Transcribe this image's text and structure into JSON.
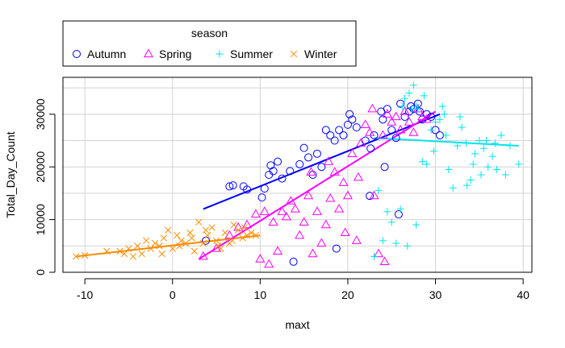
{
  "chart_data": {
    "type": "scatter",
    "xlabel": "maxt",
    "ylabel": "Total_Day_Count",
    "xlim": [
      -12.5,
      41
    ],
    "ylim": [
      0,
      37000
    ],
    "x_ticks": [
      -10,
      0,
      10,
      20,
      30,
      40
    ],
    "y_ticks": [
      0,
      10000,
      20000,
      30000
    ],
    "grid": true,
    "legend": {
      "title": "season",
      "placement": "top-left, outside plot"
    },
    "series": [
      {
        "name": "Autumn",
        "color": "#0000ff",
        "marker": "circle",
        "points": [
          [
            3.8,
            6000
          ],
          [
            6.5,
            16300
          ],
          [
            6.9,
            16500
          ],
          [
            8.1,
            16300
          ],
          [
            8.5,
            15700
          ],
          [
            10.2,
            14200
          ],
          [
            10.5,
            15900
          ],
          [
            11,
            18500
          ],
          [
            11.2,
            20300
          ],
          [
            11.5,
            19200
          ],
          [
            12,
            21000
          ],
          [
            12.5,
            17800
          ],
          [
            13.4,
            19200
          ],
          [
            13.8,
            2000
          ],
          [
            14.5,
            20500
          ],
          [
            15,
            23600
          ],
          [
            15.5,
            21800
          ],
          [
            16,
            18500
          ],
          [
            16.5,
            22500
          ],
          [
            17,
            20000
          ],
          [
            17.5,
            27000
          ],
          [
            18,
            26000
          ],
          [
            18.5,
            25000
          ],
          [
            19,
            27000
          ],
          [
            19.5,
            26000
          ],
          [
            20,
            28000
          ],
          [
            20.5,
            29000
          ],
          [
            21,
            27500
          ],
          [
            22,
            25000
          ],
          [
            22.5,
            14500
          ],
          [
            22.6,
            23500
          ],
          [
            23,
            26000
          ],
          [
            24,
            29000
          ],
          [
            24.5,
            31000
          ],
          [
            25,
            27000
          ],
          [
            25.5,
            25500
          ],
          [
            25.8,
            11000
          ],
          [
            26,
            32000
          ],
          [
            26.5,
            29500
          ],
          [
            27,
            30500
          ],
          [
            27.5,
            31000
          ],
          [
            28,
            32000
          ],
          [
            28.5,
            29000
          ],
          [
            29,
            30000
          ],
          [
            29.5,
            29500
          ],
          [
            30,
            27000
          ],
          [
            30.5,
            26000
          ],
          [
            18.7,
            4500
          ],
          [
            20.2,
            30000
          ],
          [
            23.8,
            30500
          ],
          [
            27.2,
            31500
          ],
          [
            28.2,
            30500
          ],
          [
            24.2,
            20000
          ]
        ]
      },
      {
        "name": "Spring",
        "color": "#ff00ff",
        "marker": "triangle",
        "points": [
          [
            3.5,
            3000
          ],
          [
            5,
            4500
          ],
          [
            6.5,
            7000
          ],
          [
            7.5,
            8500
          ],
          [
            8.5,
            9000
          ],
          [
            9.5,
            11000
          ],
          [
            10,
            2500
          ],
          [
            10.5,
            11500
          ],
          [
            11,
            1500
          ],
          [
            11.5,
            9500
          ],
          [
            12,
            4000
          ],
          [
            12.5,
            11500
          ],
          [
            13,
            10500
          ],
          [
            13.5,
            13500
          ],
          [
            14,
            12000
          ],
          [
            14.5,
            7000
          ],
          [
            15,
            9500
          ],
          [
            15.5,
            14500
          ],
          [
            16,
            3500
          ],
          [
            16.5,
            11500
          ],
          [
            17,
            5500
          ],
          [
            17.5,
            9000
          ],
          [
            18,
            14000
          ],
          [
            18.5,
            19000
          ],
          [
            19,
            12000
          ],
          [
            19.5,
            17000
          ],
          [
            20,
            14500
          ],
          [
            20.5,
            22500
          ],
          [
            21,
            6000
          ],
          [
            21.5,
            24500
          ],
          [
            22,
            28000
          ],
          [
            22.5,
            26500
          ],
          [
            23,
            14500
          ],
          [
            23.5,
            3500
          ],
          [
            24,
            26000
          ],
          [
            24.5,
            30000
          ],
          [
            25,
            28500
          ],
          [
            25.5,
            29500
          ],
          [
            26,
            27000
          ],
          [
            26.5,
            30500
          ],
          [
            27,
            28500
          ],
          [
            27.5,
            26500
          ],
          [
            28,
            31000
          ],
          [
            28.5,
            29500
          ],
          [
            29,
            29000
          ],
          [
            21.2,
            18000
          ],
          [
            22.8,
            31000
          ],
          [
            19.7,
            7500
          ],
          [
            17.8,
            21000
          ],
          [
            15.8,
            19000
          ],
          [
            24.2,
            2000
          ]
        ]
      },
      {
        "name": "Summer",
        "color": "#00e5ee",
        "marker": "plus",
        "points": [
          [
            23,
            3000
          ],
          [
            23.5,
            15500
          ],
          [
            24,
            6000
          ],
          [
            24.5,
            11500
          ],
          [
            25,
            9500
          ],
          [
            25.5,
            5500
          ],
          [
            26,
            12000
          ],
          [
            26.5,
            33000
          ],
          [
            27,
            34000
          ],
          [
            27.5,
            35500
          ],
          [
            27.8,
            9000
          ],
          [
            28,
            31000
          ],
          [
            28.5,
            21000
          ],
          [
            29,
            20500
          ],
          [
            29.5,
            27000
          ],
          [
            30,
            28500
          ],
          [
            30.5,
            29000
          ],
          [
            31,
            30000
          ],
          [
            31.5,
            19500
          ],
          [
            32,
            16000
          ],
          [
            32.5,
            24000
          ],
          [
            33,
            27500
          ],
          [
            33.5,
            24500
          ],
          [
            34,
            17500
          ],
          [
            34.5,
            22500
          ],
          [
            35,
            25000
          ],
          [
            35.5,
            23500
          ],
          [
            36,
            20000
          ],
          [
            36.5,
            22000
          ],
          [
            37,
            19500
          ],
          [
            37.5,
            26000
          ],
          [
            38,
            18500
          ],
          [
            38.5,
            24000
          ],
          [
            39.5,
            20500
          ],
          [
            26.2,
            31500
          ],
          [
            27.3,
            31000
          ],
          [
            28.7,
            33500
          ],
          [
            29.8,
            23000
          ],
          [
            31.2,
            26000
          ],
          [
            32.8,
            29500
          ],
          [
            34.3,
            20500
          ],
          [
            35.2,
            18500
          ],
          [
            36.8,
            24500
          ],
          [
            26.8,
            5000
          ],
          [
            27.8,
            31500
          ],
          [
            33.6,
            16500
          ],
          [
            30.8,
            31500
          ],
          [
            35.8,
            25000
          ]
        ]
      },
      {
        "name": "Winter",
        "color": "#ff8c00",
        "marker": "x",
        "points": [
          [
            -11,
            3000
          ],
          [
            -10,
            3200
          ],
          [
            -6,
            4000
          ],
          [
            -5.5,
            3500
          ],
          [
            -5,
            4500
          ],
          [
            -4,
            5000
          ],
          [
            -3.5,
            3500
          ],
          [
            -3,
            6000
          ],
          [
            -2.5,
            4500
          ],
          [
            -2,
            5500
          ],
          [
            -1.5,
            5000
          ],
          [
            -1,
            6500
          ],
          [
            -0.5,
            8000
          ],
          [
            0,
            4500
          ],
          [
            0.5,
            7000
          ],
          [
            1,
            6000
          ],
          [
            1.5,
            5500
          ],
          [
            2,
            7500
          ],
          [
            2.5,
            4000
          ],
          [
            3,
            9500
          ],
          [
            3.5,
            5500
          ],
          [
            4,
            7000
          ],
          [
            4.5,
            8500
          ],
          [
            5,
            6000
          ],
          [
            5.5,
            4500
          ],
          [
            6,
            7500
          ],
          [
            6.5,
            5500
          ],
          [
            7,
            9000
          ],
          [
            7.5,
            8000
          ],
          [
            8,
            6500
          ],
          [
            8.5,
            7000
          ],
          [
            9,
            7500
          ],
          [
            -7.5,
            4000
          ],
          [
            -4.5,
            3000
          ],
          [
            -1.2,
            3500
          ],
          [
            0.8,
            5000
          ],
          [
            2.2,
            6500
          ],
          [
            3.8,
            8000
          ],
          [
            5.2,
            5000
          ],
          [
            6.8,
            6000
          ],
          [
            8.2,
            8500
          ],
          [
            9.5,
            7000
          ]
        ]
      }
    ],
    "fit_lines": [
      {
        "series": "Autumn",
        "x": [
          3.5,
          30.5
        ],
        "y": [
          12000,
          30000
        ]
      },
      {
        "series": "Spring",
        "x": [
          3,
          30
        ],
        "y": [
          2500,
          30500
        ]
      },
      {
        "series": "Summer",
        "x": [
          23,
          39.5
        ],
        "y": [
          25500,
          24000
        ]
      },
      {
        "series": "Winter",
        "x": [
          -11,
          10
        ],
        "y": [
          3000,
          7000
        ]
      }
    ]
  }
}
